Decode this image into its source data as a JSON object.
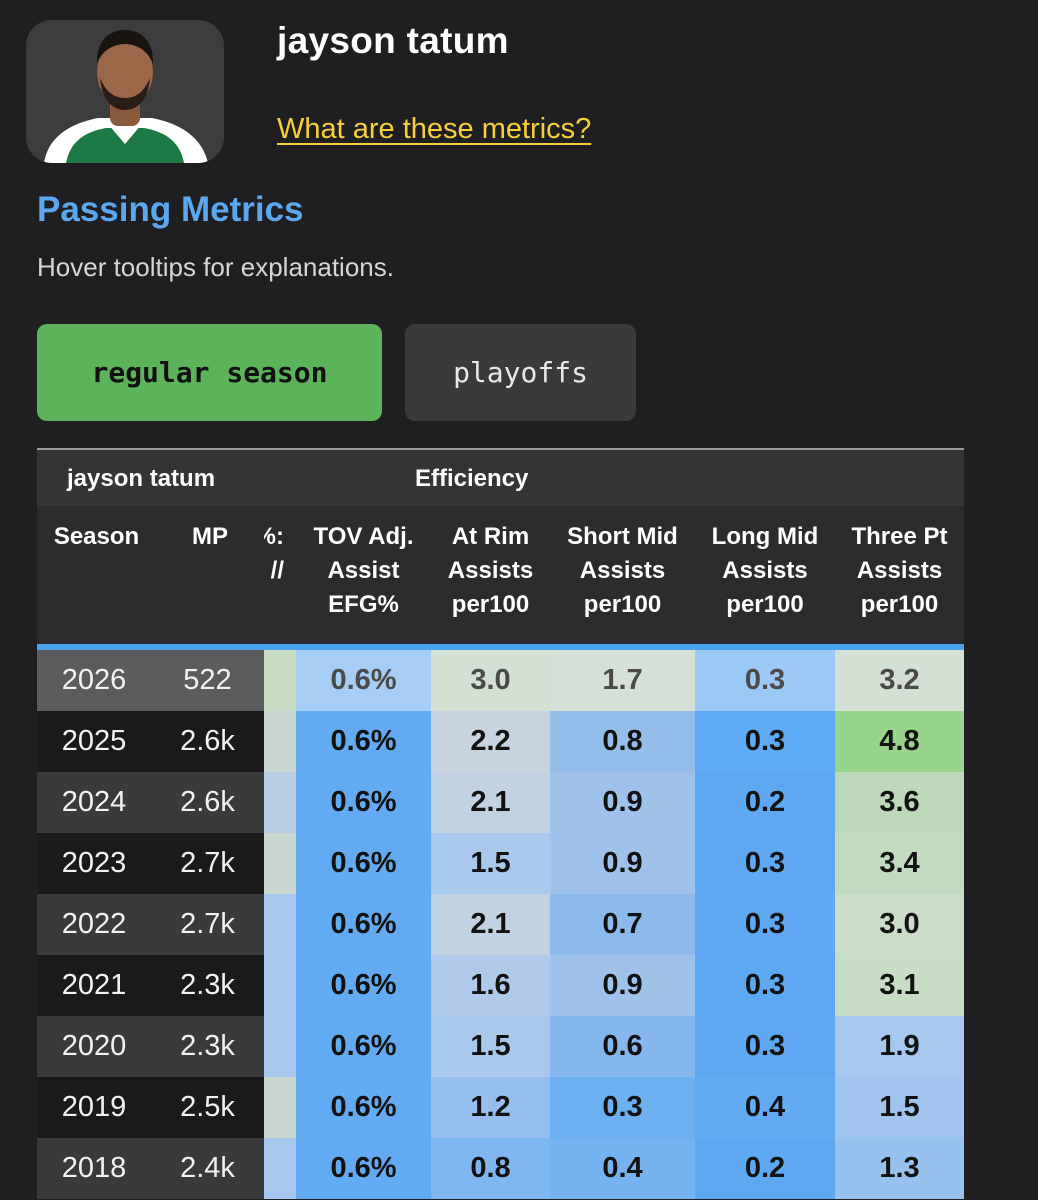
{
  "player": {
    "name": "jayson tatum"
  },
  "links": {
    "metrics": "What are these metrics?"
  },
  "section": {
    "title": "Passing Metrics",
    "hint": "Hover tooltips for explanations."
  },
  "toggle": {
    "regular": "regular season",
    "playoffs": "playoffs",
    "active": "regular season"
  },
  "table": {
    "group_player": "jayson tatum",
    "group_efficiency": "Efficiency",
    "headers": {
      "season": "Season",
      "mp": "MP",
      "clipped": "%:\n//",
      "tov": "TOV Adj.\nAssist\nEFG%",
      "rim": "At Rim\nAssists\nper100",
      "smid": "Short Mid\nAssists\nper100",
      "lmid": "Long Mid\nAssists\nper100",
      "three": "Three Pt\nAssists\nper100"
    },
    "rows": [
      {
        "season": "2026",
        "mp": "522",
        "tov": "0.6%",
        "rim": "3.0",
        "smid": "1.7",
        "lmid": "0.3",
        "three": "3.2"
      },
      {
        "season": "2025",
        "mp": "2.6k",
        "tov": "0.6%",
        "rim": "2.2",
        "smid": "0.8",
        "lmid": "0.3",
        "three": "4.8"
      },
      {
        "season": "2024",
        "mp": "2.6k",
        "tov": "0.6%",
        "rim": "2.1",
        "smid": "0.9",
        "lmid": "0.2",
        "three": "3.6"
      },
      {
        "season": "2023",
        "mp": "2.7k",
        "tov": "0.6%",
        "rim": "1.5",
        "smid": "0.9",
        "lmid": "0.3",
        "three": "3.4"
      },
      {
        "season": "2022",
        "mp": "2.7k",
        "tov": "0.6%",
        "rim": "2.1",
        "smid": "0.7",
        "lmid": "0.3",
        "three": "3.0"
      },
      {
        "season": "2021",
        "mp": "2.3k",
        "tov": "0.6%",
        "rim": "1.6",
        "smid": "0.9",
        "lmid": "0.3",
        "three": "3.1"
      },
      {
        "season": "2020",
        "mp": "2.3k",
        "tov": "0.6%",
        "rim": "1.5",
        "smid": "0.6",
        "lmid": "0.3",
        "three": "1.9"
      },
      {
        "season": "2019",
        "mp": "2.5k",
        "tov": "0.6%",
        "rim": "1.2",
        "smid": "0.3",
        "lmid": "0.4",
        "three": "1.5"
      },
      {
        "season": "2018",
        "mp": "2.4k",
        "tov": "0.6%",
        "rim": "0.8",
        "smid": "0.4",
        "lmid": "0.2",
        "three": "1.3"
      }
    ],
    "row_colors": [
      {
        "season": "#5c5c5e",
        "clip": "#c9dcc4",
        "tov": "#a6cef4",
        "rim": "#d3e0d3",
        "smid": "#d5e1d6",
        "lmid": "#9cc8f4",
        "three": "#d3e0d3"
      },
      {
        "season": "#1a1a1c",
        "clip": "#c9d5cf",
        "tov": "#62aaf2",
        "rim": "#c7d4df",
        "smid": "#94bdea",
        "lmid": "#5eaaf4",
        "three": "#98d58a"
      },
      {
        "season": "#3a3a3c",
        "clip": "#b8cde6",
        "tov": "#62aaf2",
        "rim": "#c3d2e2",
        "smid": "#9ec2ea",
        "lmid": "#5ea8f2",
        "three": "#bcd8b8"
      },
      {
        "season": "#1a1a1c",
        "clip": "#c9d6cf",
        "tov": "#62aaf2",
        "rim": "#a8c8ec",
        "smid": "#9ec2ea",
        "lmid": "#5ea8f2",
        "three": "#c2dac0"
      },
      {
        "season": "#3a3a3c",
        "clip": "#a6c8ee",
        "tov": "#62aaf2",
        "rim": "#c3d2e2",
        "smid": "#8cbaec",
        "lmid": "#5ea8f2",
        "three": "#cbdcc8"
      },
      {
        "season": "#1a1a1c",
        "clip": "#a6c8ee",
        "tov": "#62aaf2",
        "rim": "#aec9ea",
        "smid": "#9ec2ea",
        "lmid": "#5ea8f2",
        "three": "#c8dcc6"
      },
      {
        "season": "#3a3a3c",
        "clip": "#a6c8ee",
        "tov": "#62aaf2",
        "rim": "#a8c8ec",
        "smid": "#86b7ec",
        "lmid": "#5ea8f2",
        "three": "#a6c8ee"
      },
      {
        "season": "#1a1a1c",
        "clip": "#c9d6cf",
        "tov": "#62aaf2",
        "rim": "#96bff0",
        "smid": "#6cb0f2",
        "lmid": "#62aaf2",
        "three": "#a0c4ee"
      },
      {
        "season": "#3a3a3c",
        "clip": "#a6c8ee",
        "tov": "#62aaf2",
        "rim": "#80b6f0",
        "smid": "#76b2f0",
        "lmid": "#5ea8f2",
        "three": "#98c2ee"
      }
    ]
  },
  "colors": {
    "background": "#1f1f21",
    "accent_blue": "#5aa8f0",
    "link_yellow": "#f6cf3a",
    "active_green": "#5cb35a"
  }
}
